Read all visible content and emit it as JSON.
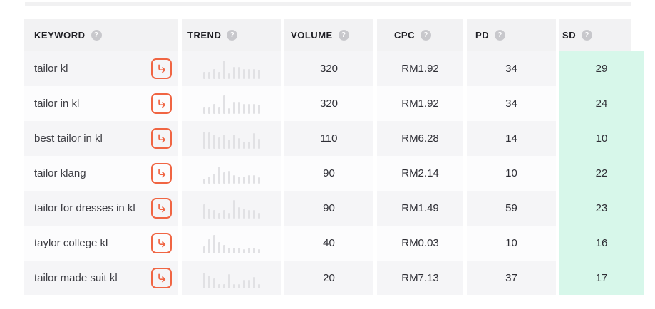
{
  "colors": {
    "accent": "#F06543",
    "mint": "#D7F7EA",
    "header_bg": "#F2F2F3",
    "row_odd": "#F5F5F7",
    "row_even": "#FCFCFD",
    "bar": "#E1E1E4",
    "help_bg": "#C8C8CC",
    "text_dark": "#202025",
    "text_body": "#3C3C42",
    "text_num": "#2F2F36",
    "divider": "#F1F1F2"
  },
  "icons": {
    "help_glyph": "?",
    "open_arrow": "arrow-hook-right"
  },
  "table": {
    "columns": [
      {
        "key": "keyword",
        "label": "KEYWORD"
      },
      {
        "key": "trend",
        "label": "TREND"
      },
      {
        "key": "volume",
        "label": "VOLUME"
      },
      {
        "key": "cpc",
        "label": "CPC"
      },
      {
        "key": "pd",
        "label": "PD"
      },
      {
        "key": "sd",
        "label": "SD"
      }
    ],
    "rows": [
      {
        "keyword": "tailor kl",
        "volume": "320",
        "cpc": "RM1.92",
        "pd": "34",
        "sd": "29",
        "trend": [
          10,
          10,
          14,
          10,
          26,
          8,
          17,
          17,
          14,
          14,
          14,
          13
        ]
      },
      {
        "keyword": "tailor in kl",
        "volume": "320",
        "cpc": "RM1.92",
        "pd": "34",
        "sd": "24",
        "trend": [
          10,
          10,
          14,
          10,
          26,
          8,
          17,
          17,
          14,
          14,
          14,
          13
        ]
      },
      {
        "keyword": "best tailor in kl",
        "volume": "110",
        "cpc": "RM6.28",
        "pd": "14",
        "sd": "10",
        "trend": [
          24,
          23,
          20,
          16,
          20,
          13,
          20,
          15,
          10,
          10,
          22,
          14
        ]
      },
      {
        "keyword": "tailor klang",
        "volume": "90",
        "cpc": "RM2.14",
        "pd": "10",
        "sd": "22",
        "trend": [
          7,
          10,
          14,
          24,
          16,
          18,
          12,
          10,
          10,
          12,
          12,
          9
        ]
      },
      {
        "keyword": "tailor for dresses in kl",
        "volume": "90",
        "cpc": "RM1.49",
        "pd": "59",
        "sd": "23",
        "trend": [
          20,
          14,
          12,
          8,
          12,
          8,
          26,
          16,
          14,
          12,
          12,
          8
        ]
      },
      {
        "keyword": "taylor college kl",
        "volume": "40",
        "cpc": "RM0.03",
        "pd": "10",
        "sd": "16",
        "trend": [
          10,
          20,
          26,
          16,
          12,
          8,
          8,
          8,
          6,
          8,
          8,
          6
        ]
      },
      {
        "keyword": "tailor made suit kl",
        "volume": "20",
        "cpc": "RM7.13",
        "pd": "37",
        "sd": "17",
        "trend": [
          22,
          18,
          14,
          6,
          6,
          20,
          6,
          6,
          12,
          12,
          16,
          6
        ]
      }
    ]
  }
}
